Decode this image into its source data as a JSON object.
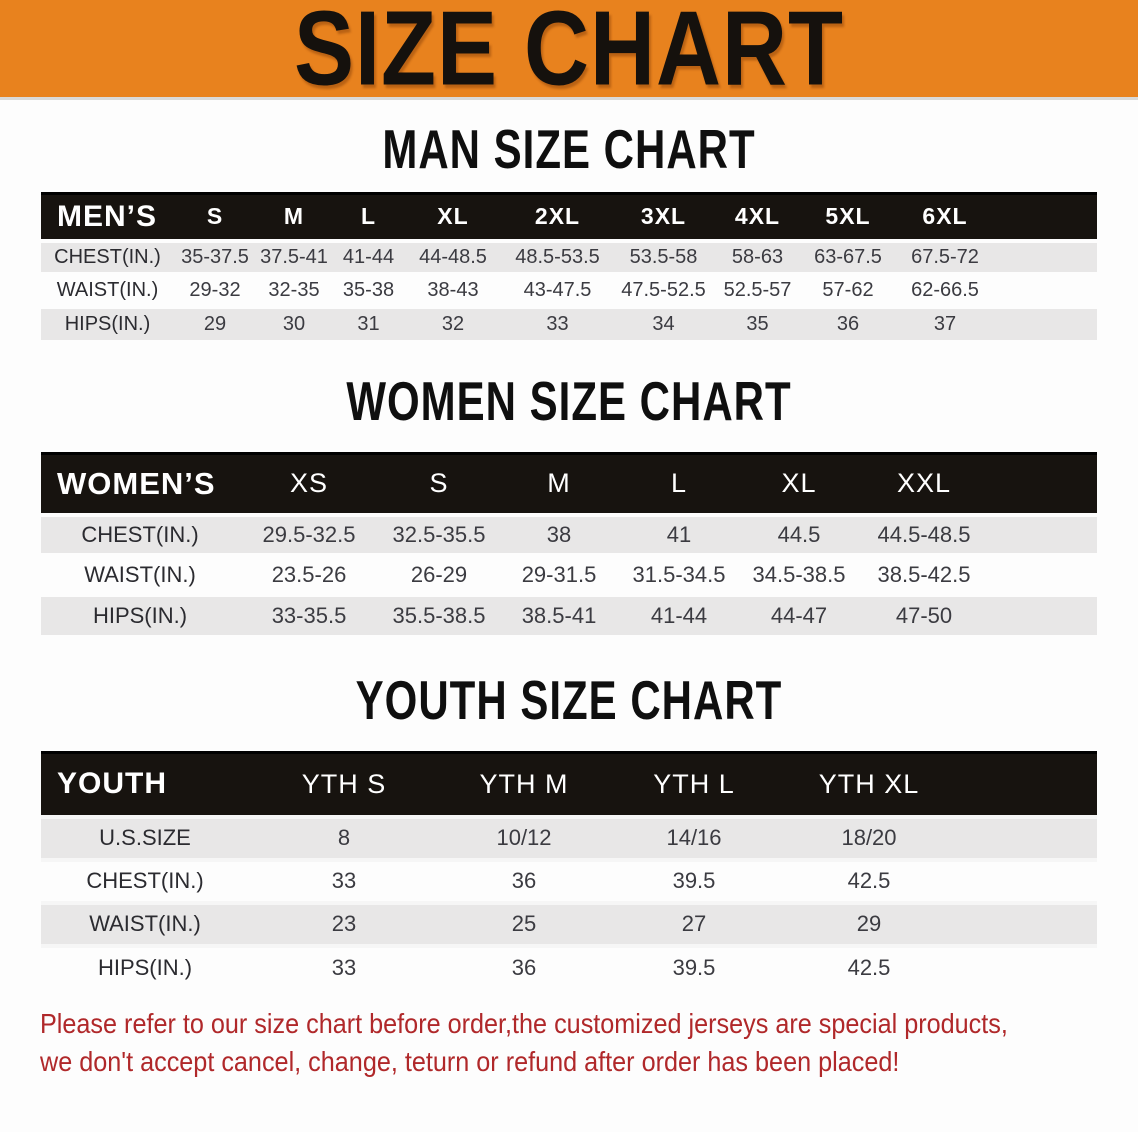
{
  "banner": {
    "title": "SIZE CHART"
  },
  "theme": {
    "banner_orange": "#E8821E",
    "header_bar_black": "#17130F",
    "row_stripe_gray": "#E8E7E7",
    "disclaimer_red": "#B0282A"
  },
  "sections": [
    {
      "id": "man",
      "heading": "MAN SIZE CHART",
      "group_label": "MEN’S",
      "columns": [
        "S",
        "M",
        "L",
        "XL",
        "2XL",
        "3XL",
        "4XL",
        "5XL",
        "6XL"
      ],
      "rows": [
        {
          "label": "CHEST(IN.)",
          "values": [
            "35-37.5",
            "37.5-41",
            "41-44",
            "44-48.5",
            "48.5-53.5",
            "53.5-58",
            "58-63",
            "63-67.5",
            "67.5-72"
          ]
        },
        {
          "label": "WAIST(IN.)",
          "values": [
            "29-32",
            "32-35",
            "35-38",
            "38-43",
            "43-47.5",
            "47.5-52.5",
            "52.5-57",
            "57-62",
            "62-66.5"
          ]
        },
        {
          "label": "HIPS(IN.)",
          "values": [
            "29",
            "30",
            "31",
            "32",
            "33",
            "34",
            "35",
            "36",
            "37"
          ]
        }
      ]
    },
    {
      "id": "women",
      "heading": "WOMEN SIZE CHART",
      "group_label": "WOMEN’S",
      "columns": [
        "XS",
        "S",
        "M",
        "L",
        "XL",
        "XXL"
      ],
      "rows": [
        {
          "label": "CHEST(IN.)",
          "values": [
            "29.5-32.5",
            "32.5-35.5",
            "38",
            "41",
            "44.5",
            "44.5-48.5"
          ]
        },
        {
          "label": "WAIST(IN.)",
          "values": [
            "23.5-26",
            "26-29",
            "29-31.5",
            "31.5-34.5",
            "34.5-38.5",
            "38.5-42.5"
          ]
        },
        {
          "label": "HIPS(IN.)",
          "values": [
            "33-35.5",
            "35.5-38.5",
            "38.5-41",
            "41-44",
            "44-47",
            "47-50"
          ]
        }
      ]
    },
    {
      "id": "youth",
      "heading": "YOUTH SIZE CHART",
      "group_label": "YOUTH",
      "columns": [
        "YTH S",
        "YTH M",
        "YTH L",
        "YTH XL"
      ],
      "rows": [
        {
          "label": "U.S.SIZE",
          "values": [
            "8",
            "10/12",
            "14/16",
            "18/20"
          ]
        },
        {
          "label": "CHEST(IN.)",
          "values": [
            "33",
            "36",
            "39.5",
            "42.5"
          ]
        },
        {
          "label": "WAIST(IN.)",
          "values": [
            "23",
            "25",
            "27",
            "29"
          ]
        },
        {
          "label": "HIPS(IN.)",
          "values": [
            "33",
            "36",
            "39.5",
            "42.5"
          ]
        }
      ]
    }
  ],
  "footer": {
    "line1": "Please refer to our size chart before order,the customized jerseys are special products,",
    "line2": "we don't accept cancel, change, teturn or refund after order has been placed!"
  }
}
